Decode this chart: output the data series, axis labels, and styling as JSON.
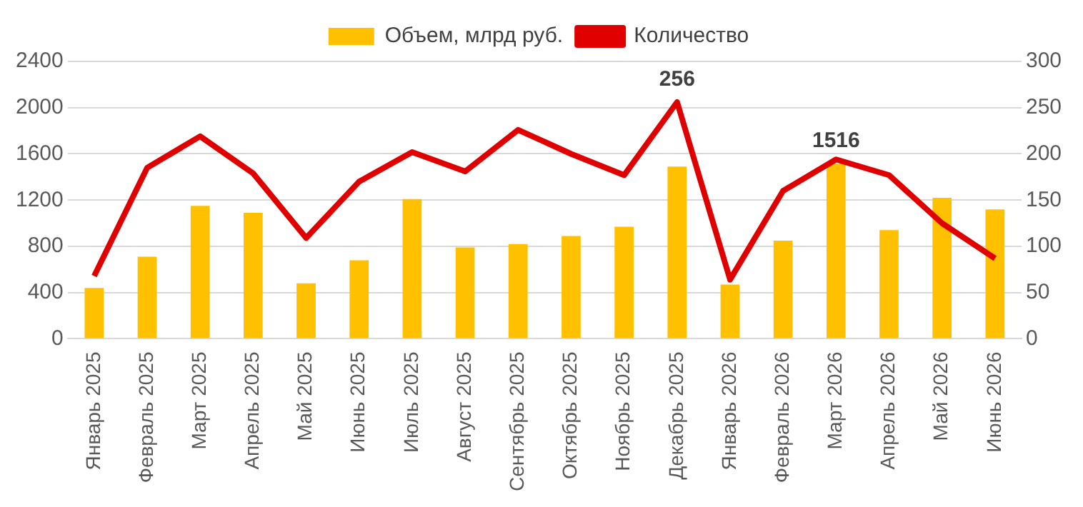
{
  "chart_data": {
    "type": "bar",
    "categories": [
      "Январь 2025",
      "Февраль 2025",
      "Март 2025",
      "Апрель 2025",
      "Май 2025",
      "Июнь 2025",
      "Июль 2025",
      "Август 2025",
      "Сентябрь 2025",
      "Октябрь 2025",
      "Ноябрь 2025",
      "Декабрь 2025",
      "Январь 2026",
      "Февраль 2026",
      "Март 2026",
      "Апрель 2026",
      "Май 2026",
      "Июнь 2026"
    ],
    "series": [
      {
        "name": "Объем, млрд руб.",
        "color": "#ffc000",
        "values": [
          440,
          710,
          1150,
          1090,
          480,
          680,
          1210,
          790,
          820,
          890,
          970,
          1490,
          470,
          850,
          1516,
          940,
          1220,
          1120
        ],
        "value_labels": [
          null,
          null,
          null,
          null,
          null,
          null,
          null,
          null,
          null,
          null,
          null,
          null,
          null,
          null,
          "1516",
          null,
          null,
          null
        ]
      },
      {
        "name": "Количество",
        "type": "line",
        "axis": "y2",
        "color": "#e00000",
        "values": [
          68,
          185,
          219,
          179,
          109,
          170,
          202,
          181,
          226,
          200,
          177,
          256,
          64,
          160,
          194,
          177,
          125,
          87
        ],
        "value_labels": [
          null,
          null,
          null,
          null,
          null,
          null,
          null,
          null,
          null,
          null,
          null,
          "256",
          null,
          null,
          null,
          null,
          null,
          null
        ]
      }
    ],
    "ylim": [
      0,
      2400
    ],
    "yticks": [
      0,
      400,
      800,
      1200,
      1600,
      2000,
      2400
    ],
    "y2lim": [
      0,
      300
    ],
    "y2ticks": [
      0,
      50,
      100,
      150,
      200,
      250,
      300
    ],
    "grid": "y",
    "legend": "top",
    "marker": "none"
  }
}
